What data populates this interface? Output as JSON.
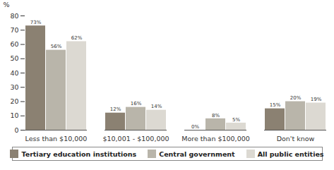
{
  "chart_data": {
    "type": "bar",
    "categories": [
      "Less than $10,000",
      "$10,001 - $100,000",
      "More than $100,000",
      "Don't know"
    ],
    "series": [
      {
        "name": "Tertiary education institutions",
        "color": "#8b8172",
        "values": [
          73,
          12,
          0,
          15
        ],
        "value_labels": [
          "73%",
          "12%",
          "0%",
          "15%"
        ]
      },
      {
        "name": "Central government",
        "color": "#b9b5aa",
        "values": [
          56,
          16,
          8,
          20
        ],
        "value_labels": [
          "56%",
          "16%",
          "8%",
          "20%"
        ]
      },
      {
        "name": "All public entities",
        "color": "#dcd9d2",
        "values": [
          62,
          14,
          5,
          19
        ],
        "value_labels": [
          "62%",
          "14%",
          "5%",
          "19%"
        ]
      }
    ],
    "y_label": "%",
    "ylim": [
      0,
      80
    ],
    "yticks": [
      0,
      10,
      20,
      30,
      40,
      50,
      60,
      70,
      80
    ],
    "grid": false,
    "legend": "bottom",
    "data_labels": true
  }
}
